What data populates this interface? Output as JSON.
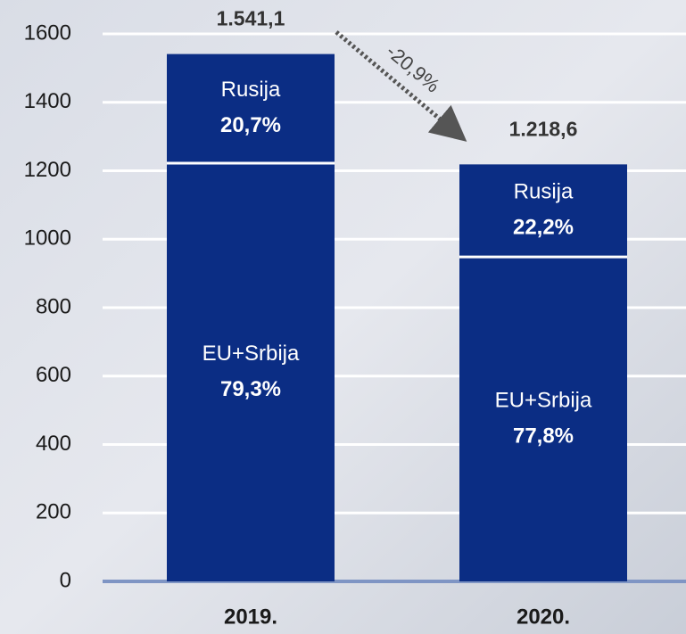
{
  "chart_data": {
    "type": "stacked_bar",
    "categories": [
      "2019.",
      "2020."
    ],
    "series": [
      {
        "name": "EU+Srbija",
        "color": "#0b2d84",
        "values": [
          1222.1,
          948.1
        ],
        "shares": [
          79.3,
          77.8
        ],
        "share_labels": [
          "79,3%",
          "77,8%"
        ]
      },
      {
        "name": "Rusija",
        "color": "#0b2d84",
        "values": [
          319.0,
          270.5
        ],
        "shares": [
          20.7,
          22.2
        ],
        "share_labels": [
          "20,7%",
          "22,2%"
        ]
      }
    ],
    "totals": [
      1541.1,
      1218.6
    ],
    "total_labels": [
      "1.541,1",
      "1.218,6"
    ],
    "annotation": "-20,9%",
    "ylim": [
      0,
      1600
    ],
    "yticks": [
      0,
      200,
      400,
      600,
      800,
      1000,
      1200,
      1400,
      1600
    ],
    "grid": true
  }
}
